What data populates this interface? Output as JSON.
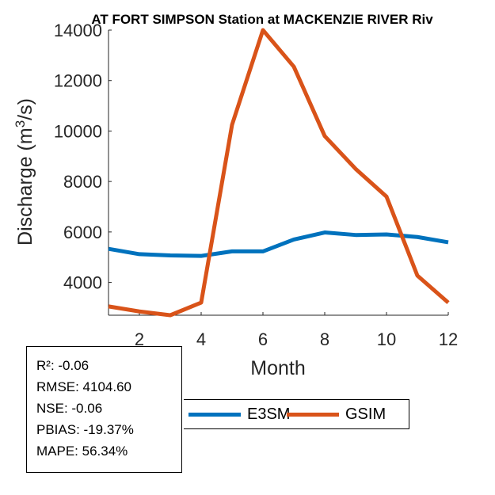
{
  "chart_data": {
    "type": "line",
    "title": "AT FORT SIMPSON  Station at  MACKENZIE RIVER  Riv",
    "xlabel": "Month",
    "ylabel": "Discharge (m³/s)",
    "xlim": [
      1,
      12
    ],
    "ylim": [
      2700,
      14000
    ],
    "xticks": [
      2,
      4,
      6,
      8,
      10,
      12
    ],
    "yticks": [
      4000,
      6000,
      8000,
      10000,
      12000,
      14000
    ],
    "x": [
      1,
      2,
      3,
      4,
      5,
      6,
      7,
      8,
      9,
      10,
      11,
      12
    ],
    "series": [
      {
        "name": "E3SM",
        "color": "#0072BD",
        "values": [
          5330,
          5120,
          5070,
          5050,
          5230,
          5230,
          5700,
          5980,
          5880,
          5900,
          5800,
          5590
        ]
      },
      {
        "name": "GSIM",
        "color": "#D95319",
        "values": [
          3050,
          2850,
          2700,
          3200,
          10250,
          14000,
          12550,
          9800,
          8500,
          7400,
          4270,
          3200
        ]
      }
    ],
    "legend_position": "bottom-center",
    "grid": false
  },
  "stats": {
    "r2": "R²: -0.06",
    "rmse": "RMSE: 4104.60",
    "nse": "NSE: -0.06",
    "pbias": "PBIAS: -19.37%",
    "mape": "MAPE: 56.34%"
  }
}
